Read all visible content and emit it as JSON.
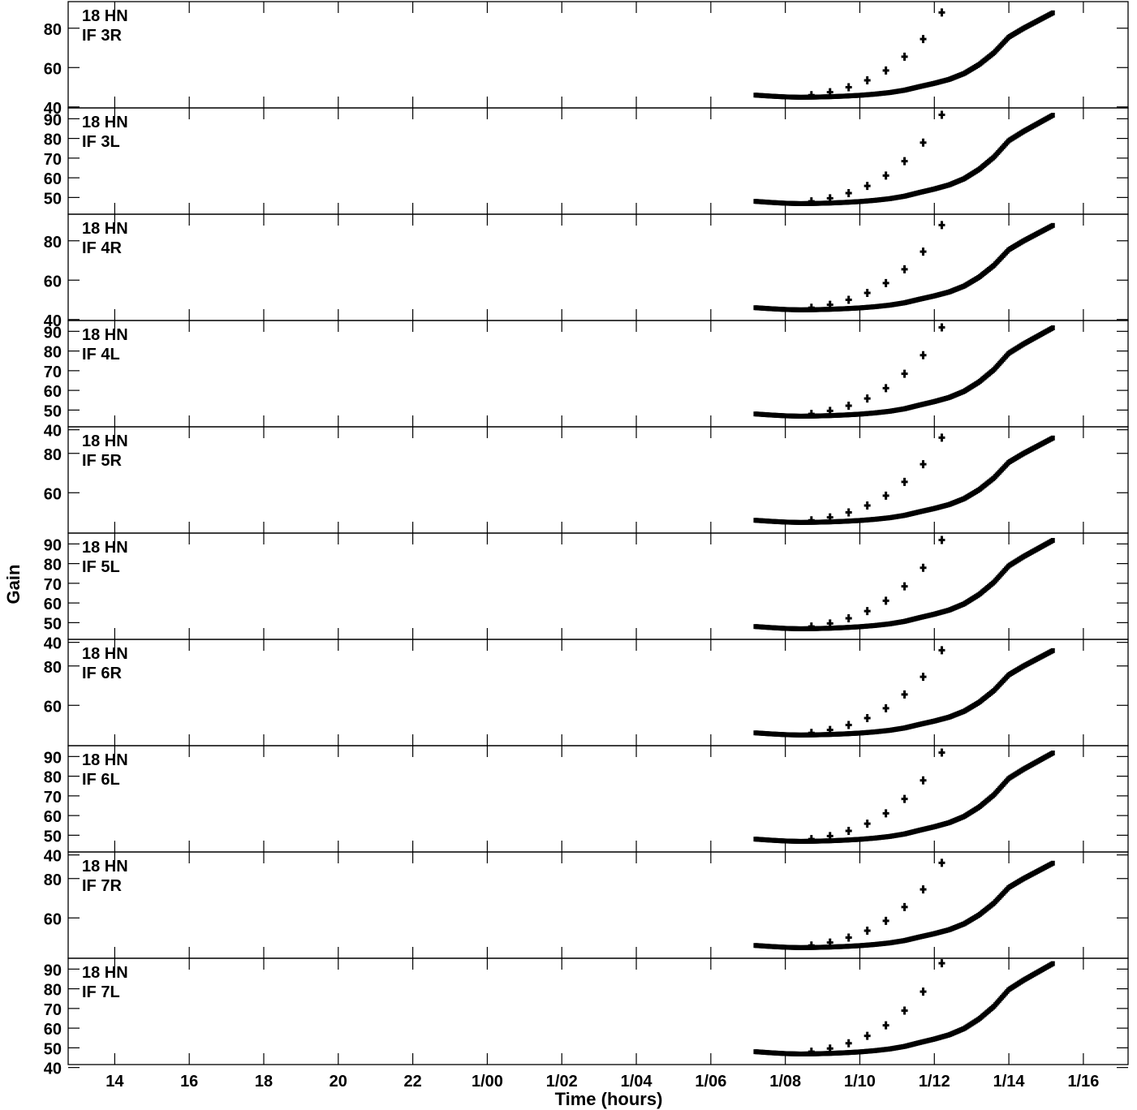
{
  "chart_data": {
    "type": "scatter",
    "xlabel": "Time (hours)",
    "ylabel": "Gain",
    "x_ticks": [
      "14",
      "16",
      "18",
      "20",
      "22",
      "1/00",
      "1/02",
      "1/04",
      "1/06",
      "1/08",
      "1/10",
      "1/12",
      "1/14",
      "1/16"
    ],
    "x_tick_hours": [
      14,
      16,
      18,
      20,
      22,
      24,
      26,
      28,
      30,
      32,
      34,
      36,
      38,
      40
    ],
    "xlim": [
      12.75,
      41.2
    ],
    "panels": [
      {
        "label1": "18 HN",
        "label2": "IF 3R",
        "ylim": [
          39.5,
          93.5
        ],
        "yticks": [
          40,
          60,
          80
        ],
        "ymin_gain": 45.5,
        "ymax_gain": 88
      },
      {
        "label1": "18 HN",
        "label2": "IF 3L",
        "ylim": [
          41.5,
          95.5
        ],
        "yticks": [
          50,
          60,
          70,
          80,
          90
        ],
        "ymin_gain": 47.5,
        "ymax_gain": 92
      },
      {
        "label1": "18 HN",
        "label2": "IF 4R",
        "ylim": [
          39.5,
          93.5
        ],
        "yticks": [
          40,
          60,
          80
        ],
        "ymin_gain": 45.5,
        "ymax_gain": 88
      },
      {
        "label1": "18 HN",
        "label2": "IF 4L",
        "ylim": [
          41.5,
          95.5
        ],
        "yticks": [
          40,
          50,
          60,
          70,
          80,
          90
        ],
        "ymin_gain": 47.5,
        "ymax_gain": 92
      },
      {
        "label1": "18 HN",
        "label2": "IF 5R",
        "ylim": [
          39.5,
          93.5
        ],
        "yticks": [
          80,
          60
        ],
        "ymin_gain": 45.5,
        "ymax_gain": 88
      },
      {
        "label1": "18 HN",
        "label2": "IF 5L",
        "ylim": [
          41.5,
          95.5
        ],
        "yticks": [
          40,
          50,
          60,
          70,
          80,
          90
        ],
        "ymin_gain": 47.5,
        "ymax_gain": 92
      },
      {
        "label1": "18 HN",
        "label2": "IF 6R",
        "ylim": [
          39.5,
          93.5
        ],
        "yticks": [
          80,
          60
        ],
        "ymin_gain": 45.5,
        "ymax_gain": 88
      },
      {
        "label1": "18 HN",
        "label2": "IF 6L",
        "ylim": [
          41.5,
          95.5
        ],
        "yticks": [
          40,
          50,
          60,
          70,
          80,
          90
        ],
        "ymin_gain": 47.5,
        "ymax_gain": 92
      },
      {
        "label1": "18 HN",
        "label2": "IF 7R",
        "ylim": [
          39.5,
          93.5
        ],
        "yticks": [
          80,
          60
        ],
        "ymin_gain": 45.5,
        "ymax_gain": 88
      },
      {
        "label1": "18 HN",
        "label2": "IF 7L",
        "ylim": [
          41.5,
          95.5
        ],
        "yticks": [
          40,
          50,
          60,
          70,
          80,
          90
        ],
        "ymin_gain": 47.5,
        "ymax_gain": 93
      }
    ],
    "series_curve_hours": [
      31.2,
      31.6,
      32.0,
      32.4,
      32.8,
      33.2,
      33.6,
      34.0,
      34.4,
      34.8,
      35.2,
      35.6,
      36.0,
      36.4,
      36.8,
      37.2,
      37.6,
      38.0,
      38.4,
      38.8,
      39.2
    ],
    "series_curve_offset": [
      0.5,
      0.0,
      -0.4,
      -0.6,
      -0.5,
      -0.3,
      0.0,
      0.4,
      1.0,
      1.8,
      3.0,
      4.8,
      6.5,
      8.5,
      11.5,
      16.0,
      22.0,
      30.0,
      34.5,
      38.5,
      42.5
    ],
    "series_sparse_hours": [
      32.7,
      33.2,
      33.7,
      34.2,
      34.7,
      35.2,
      35.7,
      36.2
    ],
    "series_sparse_offset": [
      0.5,
      2.0,
      4.5,
      8.0,
      13.0,
      20.0,
      29.0,
      42.5
    ]
  }
}
